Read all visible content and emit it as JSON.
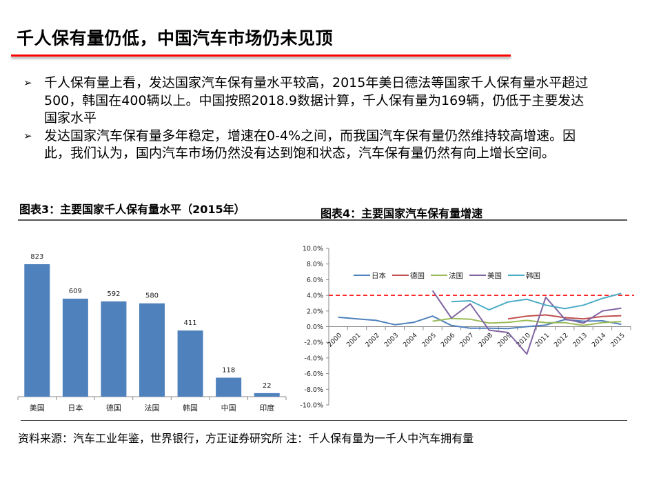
{
  "page": {
    "title": "千人保有量仍低，中国汽车市场仍未见顶",
    "accent_color": "#ff0000"
  },
  "bullets": [
    {
      "icon": "arrow-bullet-icon",
      "text": "千人保有量上看，发达国家汽车保有量水平较高，2015年美日德法等国家千人保有量水平超过500，韩国在400辆以上。中国按照2018.9数据计算，千人保有量为169辆，仍低于主要发达国家水平"
    },
    {
      "icon": "arrow-bullet-icon",
      "text": "发达国家汽车保有量多年稳定，增速在0-4%之间，而我国汽车保有量仍然维持较高增速。因此，我们认为，国内汽车市场仍然没有达到饱和状态，汽车保有量仍然有向上增长空间。"
    }
  ],
  "captions": {
    "chart3": "图表3：主要国家千人保有量水平（2015年）",
    "chart4": "图表4：主要国家汽车保有量增速"
  },
  "source": "资料来源：汽车工业年鉴，世界银行，方正证券研究所  注：千人保有量为一千人中汽车拥有量",
  "chart_data": [
    {
      "type": "bar",
      "title": "主要国家千人保有量水平（2015年）",
      "categories": [
        "美国",
        "日本",
        "德国",
        "法国",
        "韩国",
        "中国",
        "印度"
      ],
      "values": [
        823,
        609,
        592,
        580,
        411,
        118,
        22
      ],
      "labels": [
        "823",
        "609",
        "592",
        "580",
        "411",
        "118",
        "22"
      ],
      "color": "#4f81bd",
      "xlabel": "",
      "ylabel": "",
      "grid": false,
      "data_labels": true
    },
    {
      "type": "line",
      "title": "主要国家汽车保有量增速",
      "x": [
        "2000",
        "2001",
        "2002",
        "2003",
        "2004",
        "2005",
        "2006",
        "2007",
        "2008",
        "2009",
        "2010",
        "2011",
        "2012",
        "2013",
        "2014",
        "2015"
      ],
      "yticks": [
        "10.0%",
        "8.0%",
        "6.0%",
        "4.0%",
        "2.0%",
        "0.0%",
        "-2.0%",
        "-4.0%",
        "-6.0%",
        "-8.0%",
        "-10.0%"
      ],
      "ylim": [
        -10,
        10
      ],
      "legend_position": "top-inside",
      "reference_line": {
        "value": 4.0,
        "color": "#ff0000",
        "style": "dashed"
      },
      "series": [
        {
          "name": "日本",
          "color": "#4f81bd",
          "values": [
            1.2,
            1.0,
            0.8,
            0.25,
            0.55,
            1.35,
            0.15,
            -0.2,
            -0.2,
            -0.25,
            0.0,
            0.2,
            0.9,
            0.7,
            0.75,
            0.3
          ]
        },
        {
          "name": "德国",
          "color": "#c0504d",
          "values": [
            null,
            null,
            null,
            null,
            null,
            null,
            null,
            null,
            null,
            1.0,
            1.35,
            1.5,
            1.15,
            1.0,
            1.3,
            1.4
          ]
        },
        {
          "name": "法国",
          "color": "#9bbb59",
          "values": [
            null,
            null,
            null,
            null,
            null,
            0.7,
            1.05,
            0.95,
            0.45,
            0.55,
            0.8,
            0.5,
            0.5,
            0.15,
            0.5,
            0.65
          ]
        },
        {
          "name": "美国",
          "color": "#8064a2",
          "values": [
            null,
            null,
            null,
            null,
            null,
            4.6,
            1.1,
            2.9,
            -0.45,
            -0.75,
            -3.5,
            3.75,
            1.0,
            0.45,
            2.0,
            2.35
          ]
        },
        {
          "name": "韩国",
          "color": "#4bacc6",
          "values": [
            null,
            null,
            null,
            null,
            null,
            null,
            3.2,
            3.3,
            2.15,
            3.15,
            3.5,
            2.75,
            2.3,
            2.75,
            3.6,
            4.25
          ]
        }
      ],
      "xlabel": "",
      "ylabel": "",
      "grid": false
    }
  ]
}
